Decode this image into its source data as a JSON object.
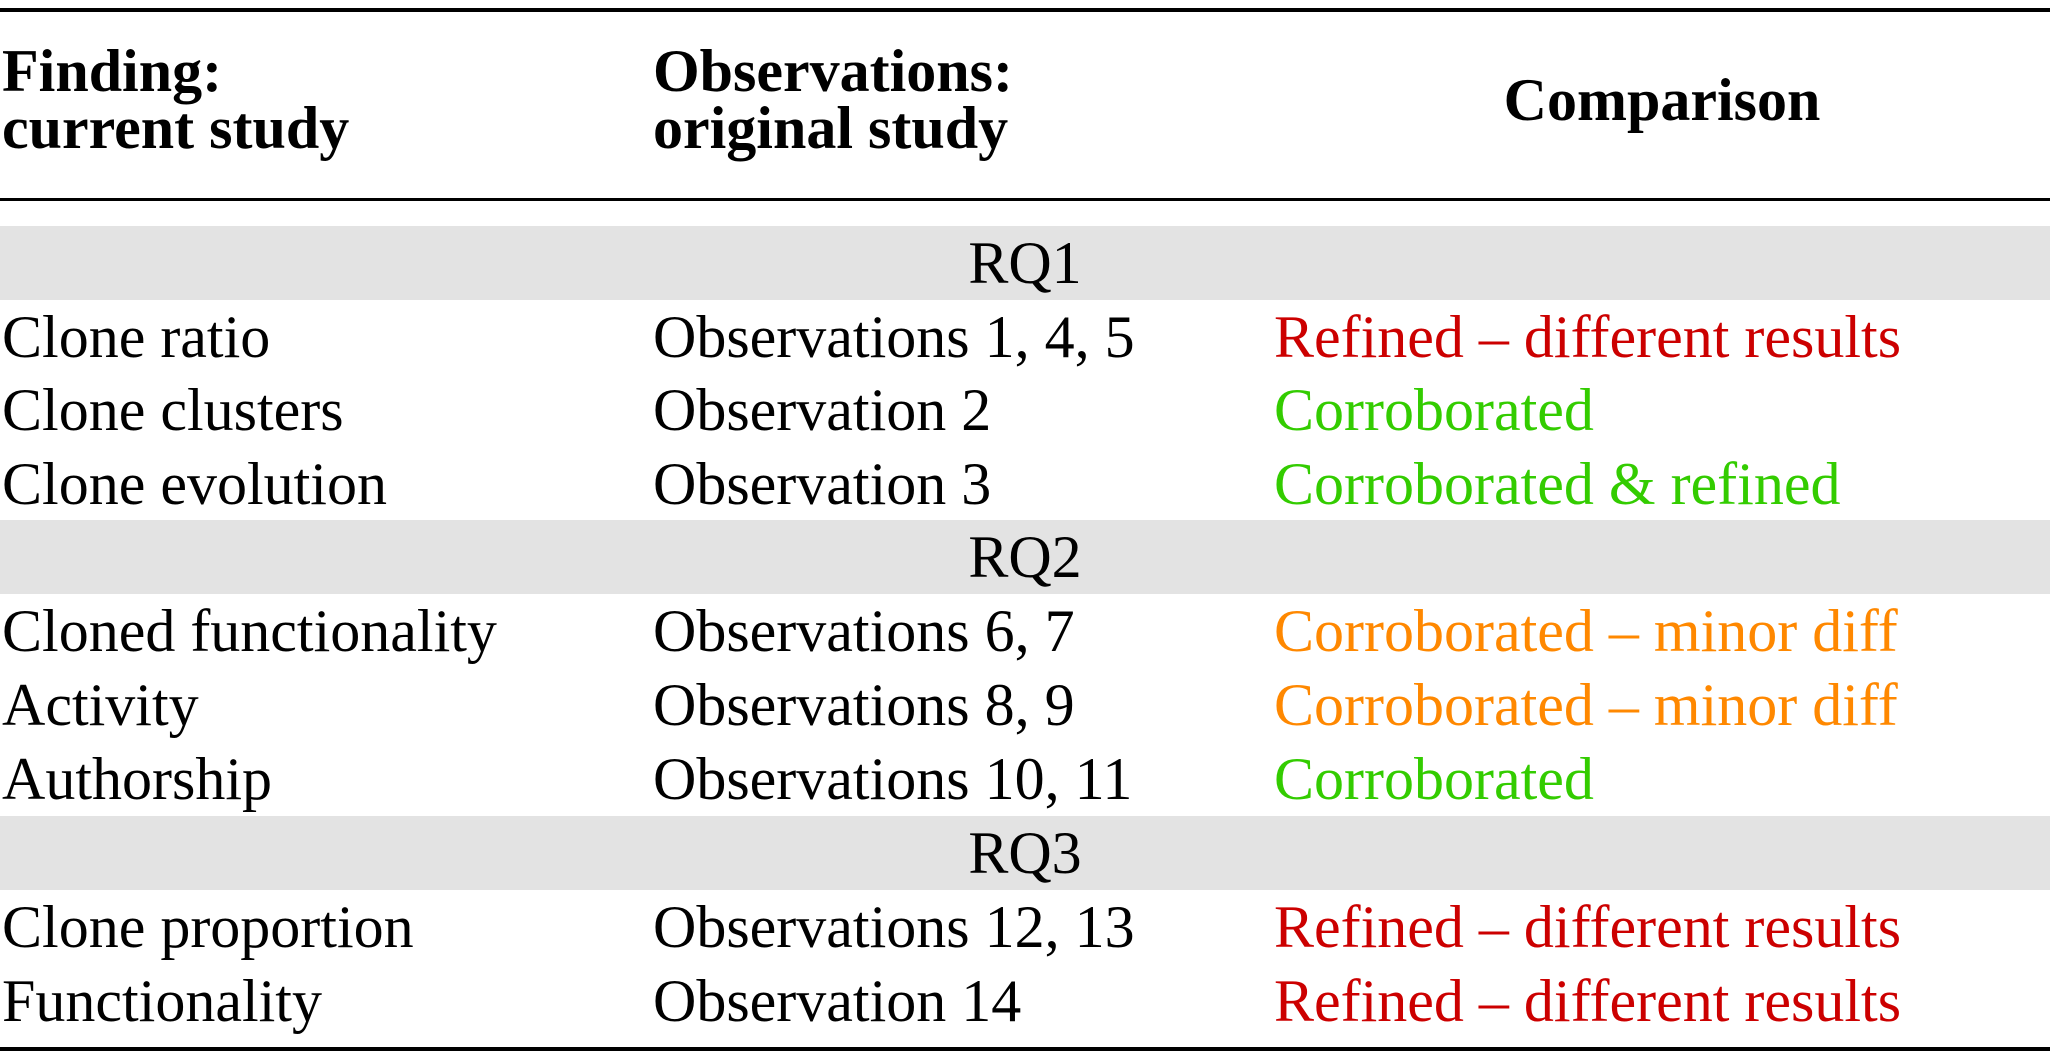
{
  "headers": {
    "finding": [
      "Finding:",
      "current study"
    ],
    "observations": [
      "Observations:",
      "original study"
    ],
    "comparison": "Comparison"
  },
  "colors": {
    "refined": "#cc0000",
    "corroborated": "#33cc00",
    "minor_diff": "#ff8800",
    "band": "#e3e3e3"
  },
  "groups": [
    {
      "label": "RQ1",
      "rows": [
        {
          "finding": "Clone ratio",
          "observations": "Observations 1, 4, 5",
          "comparison": "Refined – different results",
          "status": "refined"
        },
        {
          "finding": "Clone clusters",
          "observations": "Observation 2",
          "comparison": "Corroborated",
          "status": "corroborated"
        },
        {
          "finding": "Clone evolution",
          "observations": "Observation 3",
          "comparison": "Corroborated & refined",
          "status": "corroborated"
        }
      ]
    },
    {
      "label": "RQ2",
      "rows": [
        {
          "finding": "Cloned functionality",
          "observations": "Observations 6, 7",
          "comparison": "Corroborated – minor diff",
          "status": "minor_diff"
        },
        {
          "finding": "Activity",
          "observations": "Observations 8, 9",
          "comparison": "Corroborated – minor diff",
          "status": "minor_diff"
        },
        {
          "finding": "Authorship",
          "observations": "Observations 10, 11",
          "comparison": "Corroborated",
          "status": "corroborated"
        }
      ]
    },
    {
      "label": "RQ3",
      "rows": [
        {
          "finding": "Clone proportion",
          "observations": "Observations 12, 13",
          "comparison": "Refined – different results",
          "status": "refined"
        },
        {
          "finding": "Functionality",
          "observations": "Observation 14",
          "comparison": "Refined – different results",
          "status": "refined"
        }
      ]
    }
  ]
}
